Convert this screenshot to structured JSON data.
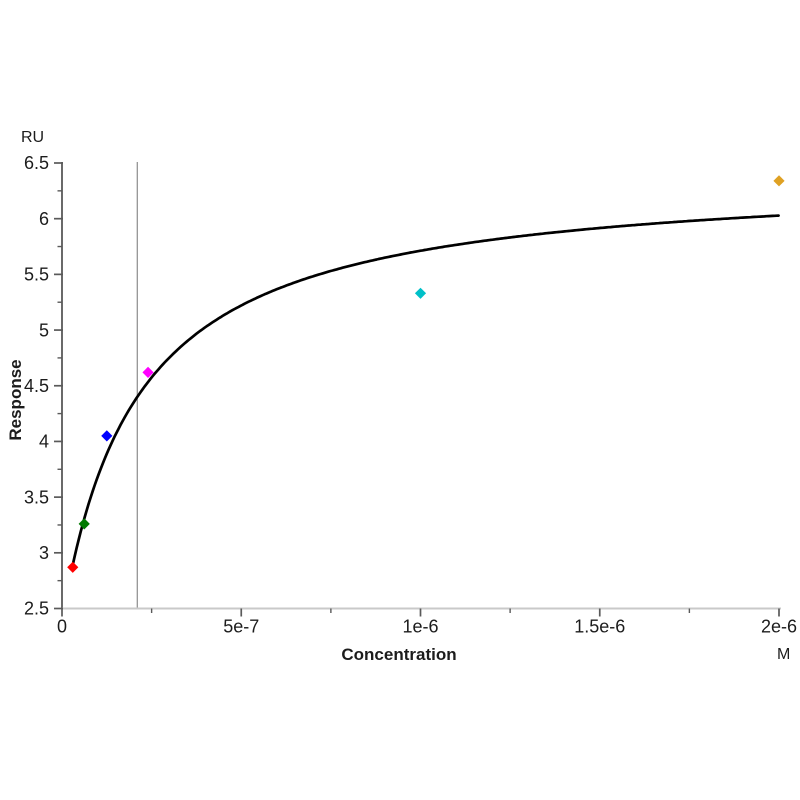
{
  "page": {
    "background_color": "#ffffff",
    "text_color": "#1c1c1c"
  },
  "chart_data": {
    "type": "scatter",
    "title": "",
    "xlabel": "Concentration",
    "x_unit_label": "M",
    "ylabel": "Response",
    "y_unit_label": "RU",
    "xlim": [
      0,
      2e-06
    ],
    "ylim": [
      2.5,
      6.5
    ],
    "grid": false,
    "legend": false,
    "x_ticks": {
      "major_values": [
        0,
        5e-07,
        1e-06,
        1.5e-06,
        2e-06
      ],
      "major_labels": [
        "0",
        "5e-7",
        "1e-6",
        "1.5e-6",
        "2e-6"
      ],
      "minor_values": [
        2.5e-07,
        7.5e-07,
        1.25e-06,
        1.75e-06
      ]
    },
    "y_ticks": {
      "major_values": [
        2.5,
        3,
        3.5,
        4,
        4.5,
        5,
        5.5,
        6,
        6.5
      ],
      "major_labels": [
        "2.5",
        "3",
        "3.5",
        "4",
        "4.5",
        "5",
        "5.5",
        "6",
        "6.5"
      ],
      "minor_values": [
        2.75,
        3.25,
        3.75,
        4.25,
        4.75,
        5.25,
        5.75,
        6.25
      ]
    },
    "points": [
      {
        "name": "red",
        "concentration": 3e-08,
        "response": 2.87,
        "color": "#ff0000"
      },
      {
        "name": "green",
        "concentration": 6.2e-08,
        "response": 3.26,
        "color": "#007a00"
      },
      {
        "name": "blue",
        "concentration": 1.25e-07,
        "response": 4.05,
        "color": "#0000ff"
      },
      {
        "name": "magenta",
        "concentration": 2.4e-07,
        "response": 4.62,
        "color": "#ff00ff"
      },
      {
        "name": "cyan",
        "concentration": 1e-06,
        "response": 5.33,
        "color": "#00c0c8"
      },
      {
        "name": "gold",
        "concentration": 2e-06,
        "response": 6.34,
        "color": "#dfa123"
      }
    ],
    "fit_curve": {
      "model": "one_site_binding",
      "offset": 2.39,
      "rmax": 4.02,
      "kd": 2.1e-07,
      "c_start": 2.95e-08,
      "c_end": 2e-06,
      "color": "#000000"
    },
    "kd_marker_line": {
      "x_value": 2.1e-07,
      "color": "#8c8c8c"
    },
    "style_colors": {
      "y_axis": "#4f4f4f",
      "x_axis": "#c9c9c9",
      "tick": "#5a5a5a",
      "tick_label": "#1c1c1c",
      "curve": "#000000"
    }
  }
}
